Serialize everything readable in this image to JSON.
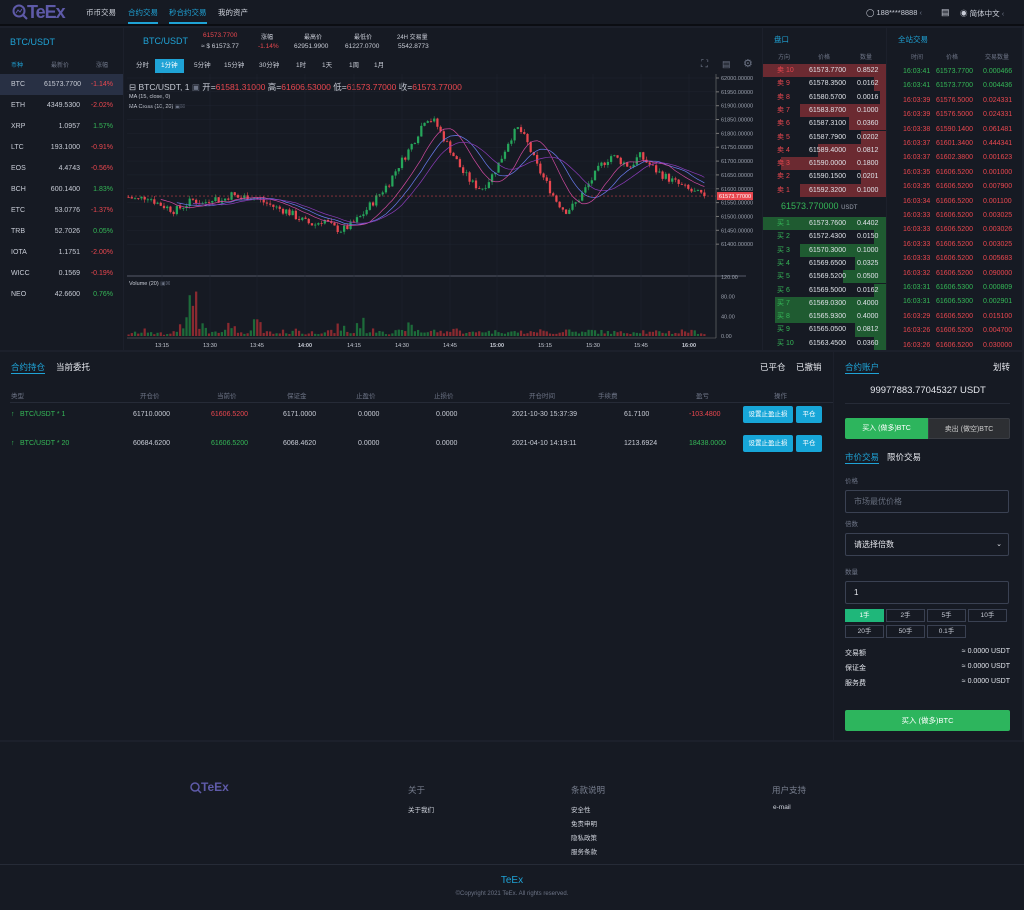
{
  "nav": {
    "logo": "TeEx",
    "items": [
      {
        "label": "币币交易",
        "active": false
      },
      {
        "label": "合约交易",
        "active": true
      },
      {
        "label": "秒合约交易",
        "active": true
      },
      {
        "label": "我的资产",
        "active": false
      }
    ],
    "user": "188****8888",
    "language": "简体中文"
  },
  "market": {
    "pair": "BTC/USDT",
    "headers": [
      "币种",
      "最新价",
      "涨幅"
    ],
    "rows": [
      {
        "coin": "BTC",
        "price": "61573.7700",
        "change": "-1.14%",
        "up": false
      },
      {
        "coin": "ETH",
        "price": "4349.5300",
        "change": "-2.02%",
        "up": false
      },
      {
        "coin": "XRP",
        "price": "1.0957",
        "change": "1.57%",
        "up": true
      },
      {
        "coin": "LTC",
        "price": "193.1000",
        "change": "-0.91%",
        "up": false
      },
      {
        "coin": "EOS",
        "price": "4.4743",
        "change": "-0.56%",
        "up": false
      },
      {
        "coin": "BCH",
        "price": "600.1400",
        "change": "1.83%",
        "up": true
      },
      {
        "coin": "ETC",
        "price": "53.0776",
        "change": "-1.37%",
        "up": false
      },
      {
        "coin": "TRB",
        "price": "52.7026",
        "change": "0.05%",
        "up": true
      },
      {
        "coin": "IOTA",
        "price": "1.1751",
        "change": "-2.00%",
        "up": false
      },
      {
        "coin": "WICC",
        "price": "0.1569",
        "change": "-0.19%",
        "up": false
      },
      {
        "coin": "NEO",
        "price": "42.6600",
        "change": "0.76%",
        "up": true
      }
    ]
  },
  "ticker": {
    "pair": "BTC/USDT",
    "price": "61573.7700",
    "usd": "≈ $ 61573.77",
    "change_label": "涨幅",
    "change": "-1.14%",
    "high_label": "最高价",
    "high": "62951.9900",
    "low_label": "最低价",
    "low": "61227.0700",
    "vol_label": "24H 交易量",
    "vol": "5542.8773"
  },
  "intervals": [
    {
      "label": "分时",
      "active": false
    },
    {
      "label": "1分钟",
      "active": true
    },
    {
      "label": "5分钟",
      "active": false
    },
    {
      "label": "15分钟",
      "active": false
    },
    {
      "label": "30分钟",
      "active": false
    },
    {
      "label": "1时",
      "active": false
    },
    {
      "label": "1天",
      "active": false
    },
    {
      "label": "1周",
      "active": false
    },
    {
      "label": "1月",
      "active": false
    }
  ],
  "chart_data": {
    "type": "candlestick",
    "title": "BTC/USDT, 1",
    "ohlc": {
      "open_label": "开=",
      "open": "61581.31000",
      "high_label": "高=",
      "high": "61606.53000",
      "low_label": "低=",
      "low": "61573.77000",
      "close_label": "收=",
      "close": "61573.77000"
    },
    "indicators": [
      "MA (15, close, 0)",
      "MA Cross (10, 20)"
    ],
    "volume_label": "Volume (20)",
    "ylim": [
      61350,
      62000
    ],
    "y_ticks": [
      "62000.00000",
      "61950.00000",
      "61900.00000",
      "61850.00000",
      "61800.00000",
      "61750.00000",
      "61700.00000",
      "61650.00000",
      "61600.00000",
      "61550.00000",
      "61500.00000",
      "61450.00000",
      "61400.00000"
    ],
    "vol_ylim": [
      0,
      120
    ],
    "vol_ticks": [
      "120.00",
      "80.00",
      "40.00",
      "0.00"
    ],
    "x_ticks": [
      "13:15",
      "13:30",
      "13:45",
      "14:00",
      "14:15",
      "14:30",
      "14:45",
      "15:00",
      "15:15",
      "15:30",
      "15:45",
      "16:00"
    ],
    "last_price": "61573.77000",
    "last_value": 61573.77,
    "closes": [
      61570,
      61560,
      61575,
      61550,
      61535,
      61520,
      61540,
      61560,
      61545,
      61570,
      61555,
      61580,
      61565,
      61575,
      61560,
      61545,
      61530,
      61520,
      61500,
      61480,
      61470,
      61490,
      61460,
      61450,
      61470,
      61500,
      61540,
      61580,
      61620,
      61680,
      61730,
      61790,
      61860,
      61840,
      61780,
      61720,
      61660,
      61620,
      61600,
      61640,
      61700,
      61780,
      61820,
      61760,
      61680,
      61620,
      61560,
      61520,
      61540,
      61590,
      61640,
      61690,
      61720,
      61700,
      61680,
      61720,
      61690,
      61660,
      61640,
      61620,
      61600,
      61585,
      61574
    ],
    "volumes": [
      5,
      8,
      12,
      6,
      4,
      10,
      30,
      85,
      20,
      8,
      15,
      40,
      6,
      12,
      28,
      8,
      5,
      10,
      14,
      6,
      9,
      12,
      10,
      20,
      8,
      30,
      12,
      15,
      8,
      10,
      22,
      14,
      10,
      12,
      9,
      18,
      10,
      8,
      12,
      10,
      14,
      9,
      10,
      8,
      12,
      10,
      8,
      14,
      10,
      8,
      12,
      10,
      9,
      8,
      10,
      12,
      8,
      9,
      10,
      8,
      12,
      10,
      8
    ],
    "colors": {
      "up": "#26a65b",
      "down": "#e9474f"
    }
  },
  "orderbook": {
    "title": "盘口",
    "headers": [
      "方向",
      "价格",
      "数量"
    ],
    "asks": [
      {
        "side": "卖 10",
        "price": "61573.7700",
        "qty": "0.8522",
        "depth": 100
      },
      {
        "side": "卖 9",
        "price": "61578.3500",
        "qty": "0.0162",
        "depth": 10
      },
      {
        "side": "卖 8",
        "price": "61580.5700",
        "qty": "0.0016",
        "depth": 5
      },
      {
        "side": "卖 7",
        "price": "61583.8700",
        "qty": "0.1000",
        "depth": 70
      },
      {
        "side": "卖 6",
        "price": "61587.3100",
        "qty": "0.0360",
        "depth": 30
      },
      {
        "side": "卖 5",
        "price": "61587.7900",
        "qty": "0.0202",
        "depth": 20
      },
      {
        "side": "卖 4",
        "price": "61589.4000",
        "qty": "0.0812",
        "depth": 55
      },
      {
        "side": "卖 3",
        "price": "61590.0000",
        "qty": "0.1800",
        "depth": 85
      },
      {
        "side": "卖 2",
        "price": "61590.1500",
        "qty": "0.0201",
        "depth": 20
      },
      {
        "side": "卖 1",
        "price": "61592.3200",
        "qty": "0.1000",
        "depth": 70
      }
    ],
    "mid": "61573.770000",
    "mid_unit": "USDT",
    "bids": [
      {
        "side": "买 1",
        "price": "61573.7600",
        "qty": "0.4402",
        "depth": 100
      },
      {
        "side": "买 2",
        "price": "61572.4300",
        "qty": "0.0150",
        "depth": 10
      },
      {
        "side": "买 3",
        "price": "61570.3000",
        "qty": "0.1000",
        "depth": 70
      },
      {
        "side": "买 4",
        "price": "61569.6500",
        "qty": "0.0325",
        "depth": 25
      },
      {
        "side": "买 5",
        "price": "61569.5200",
        "qty": "0.0500",
        "depth": 35
      },
      {
        "side": "买 6",
        "price": "61569.5000",
        "qty": "0.0162",
        "depth": 10
      },
      {
        "side": "买 7",
        "price": "61569.0300",
        "qty": "0.4000",
        "depth": 90
      },
      {
        "side": "买 8",
        "price": "61565.9300",
        "qty": "0.4000",
        "depth": 90
      },
      {
        "side": "买 9",
        "price": "61565.0500",
        "qty": "0.0812",
        "depth": 25
      },
      {
        "side": "买 10",
        "price": "61563.4500",
        "qty": "0.0360",
        "depth": 10
      }
    ]
  },
  "trades": {
    "title": "全站交易",
    "headers": [
      "时间",
      "价格",
      "交易数量"
    ],
    "rows": [
      {
        "time": "16:03:41",
        "price": "61573.7700",
        "qty": "0.000466",
        "up": true
      },
      {
        "time": "16:03:41",
        "price": "61573.7700",
        "qty": "0.004436",
        "up": true
      },
      {
        "time": "16:03:39",
        "price": "61576.5000",
        "qty": "0.024331",
        "up": false
      },
      {
        "time": "16:03:39",
        "price": "61576.5000",
        "qty": "0.024331",
        "up": false
      },
      {
        "time": "16:03:38",
        "price": "61590.1400",
        "qty": "0.061481",
        "up": false
      },
      {
        "time": "16:03:37",
        "price": "61601.3400",
        "qty": "0.444341",
        "up": false
      },
      {
        "time": "16:03:37",
        "price": "61602.3800",
        "qty": "0.001623",
        "up": false
      },
      {
        "time": "16:03:35",
        "price": "61606.5200",
        "qty": "0.001000",
        "up": false
      },
      {
        "time": "16:03:35",
        "price": "61606.5200",
        "qty": "0.007900",
        "up": false
      },
      {
        "time": "16:03:34",
        "price": "61606.5200",
        "qty": "0.001100",
        "up": false
      },
      {
        "time": "16:03:33",
        "price": "61606.5200",
        "qty": "0.003025",
        "up": false
      },
      {
        "time": "16:03:33",
        "price": "61606.5200",
        "qty": "0.003026",
        "up": false
      },
      {
        "time": "16:03:33",
        "price": "61606.5200",
        "qty": "0.003025",
        "up": false
      },
      {
        "time": "16:03:33",
        "price": "61606.5200",
        "qty": "0.005683",
        "up": false
      },
      {
        "time": "16:03:32",
        "price": "61606.5200",
        "qty": "0.090000",
        "up": false
      },
      {
        "time": "16:03:31",
        "price": "61606.5300",
        "qty": "0.000809",
        "up": true
      },
      {
        "time": "16:03:31",
        "price": "61606.5300",
        "qty": "0.002901",
        "up": true
      },
      {
        "time": "16:03:29",
        "price": "61606.5200",
        "qty": "0.015100",
        "up": false
      },
      {
        "time": "16:03:26",
        "price": "61606.5200",
        "qty": "0.004700",
        "up": false
      },
      {
        "time": "16:03:26",
        "price": "61606.5200",
        "qty": "0.030000",
        "up": false
      }
    ]
  },
  "positions": {
    "tabs": [
      {
        "label": "合约持仓",
        "active": true
      },
      {
        "label": "当前委托",
        "active": false
      }
    ],
    "right_tabs": [
      "已平仓",
      "已撤销"
    ],
    "headers": [
      "类型",
      "开仓价",
      "当前价",
      "保证金",
      "止盈价",
      "止损价",
      "开仓时间",
      "手续费",
      "盈亏",
      "操作"
    ],
    "rows": [
      {
        "type": "BTC/USDT * 1",
        "open": "61710.0000",
        "current": "61606.5200",
        "current_up": false,
        "margin": "6171.0000",
        "tp": "0.0000",
        "sl": "0.0000",
        "time": "2021-10-30 15:37:39",
        "fee": "61.7100",
        "pnl": "-103.4800",
        "pnl_up": false
      },
      {
        "type": "BTC/USDT * 20",
        "open": "60684.6200",
        "current": "61606.5200",
        "current_up": true,
        "margin": "6068.4620",
        "tp": "0.0000",
        "sl": "0.0000",
        "time": "2021-04-10 14:19:11",
        "fee": "1213.6924",
        "pnl": "18438.0000",
        "pnl_up": true
      }
    ],
    "set_tpsl": "设置止盈止损",
    "close": "平仓"
  },
  "trade_panel": {
    "account_label": "合约账户",
    "transfer": "划转",
    "balance": "99977883.77045327 USDT",
    "buy_tab": "买入 (做多)BTC",
    "sell_tab": "卖出 (做空)BTC",
    "order_tabs": [
      {
        "label": "市价交易",
        "active": true
      },
      {
        "label": "限价交易",
        "active": false
      }
    ],
    "price_label": "价格",
    "price_placeholder": "市场最优价格",
    "leverage_label": "倍数",
    "leverage_value": "请选择倍数",
    "qty_label": "数量",
    "qty_value": "1",
    "lots": [
      {
        "label": "1手",
        "active": true
      },
      {
        "label": "2手"
      },
      {
        "label": "5手"
      },
      {
        "label": "10手"
      },
      {
        "label": "20手"
      },
      {
        "label": "50手"
      },
      {
        "label": "0.1手"
      }
    ],
    "summary": [
      {
        "label": "交易额",
        "value": "≈ 0.0000 USDT"
      },
      {
        "label": "保证金",
        "value": "≈ 0.0000 USDT"
      },
      {
        "label": "服务费",
        "value": "≈ 0.0000 USDT"
      }
    ],
    "submit": "买入 (做多)BTC"
  },
  "footer": {
    "logo": "TeEx",
    "columns": [
      {
        "title": "关于",
        "links": [
          "关于我们"
        ]
      },
      {
        "title": "条款说明",
        "links": [
          "安全性",
          "免责申明",
          "隐私政策",
          "服务条款"
        ]
      },
      {
        "title": "用户支持",
        "links": [
          "e-mail"
        ]
      }
    ],
    "brand": "TeEx",
    "copyright": "©Copyright 2021 TeEx. All rights reserved."
  },
  "colors": {
    "accent": "#1fa3d6",
    "up": "#35b757",
    "down": "#e9474f",
    "buy_button": "#2db55d"
  }
}
